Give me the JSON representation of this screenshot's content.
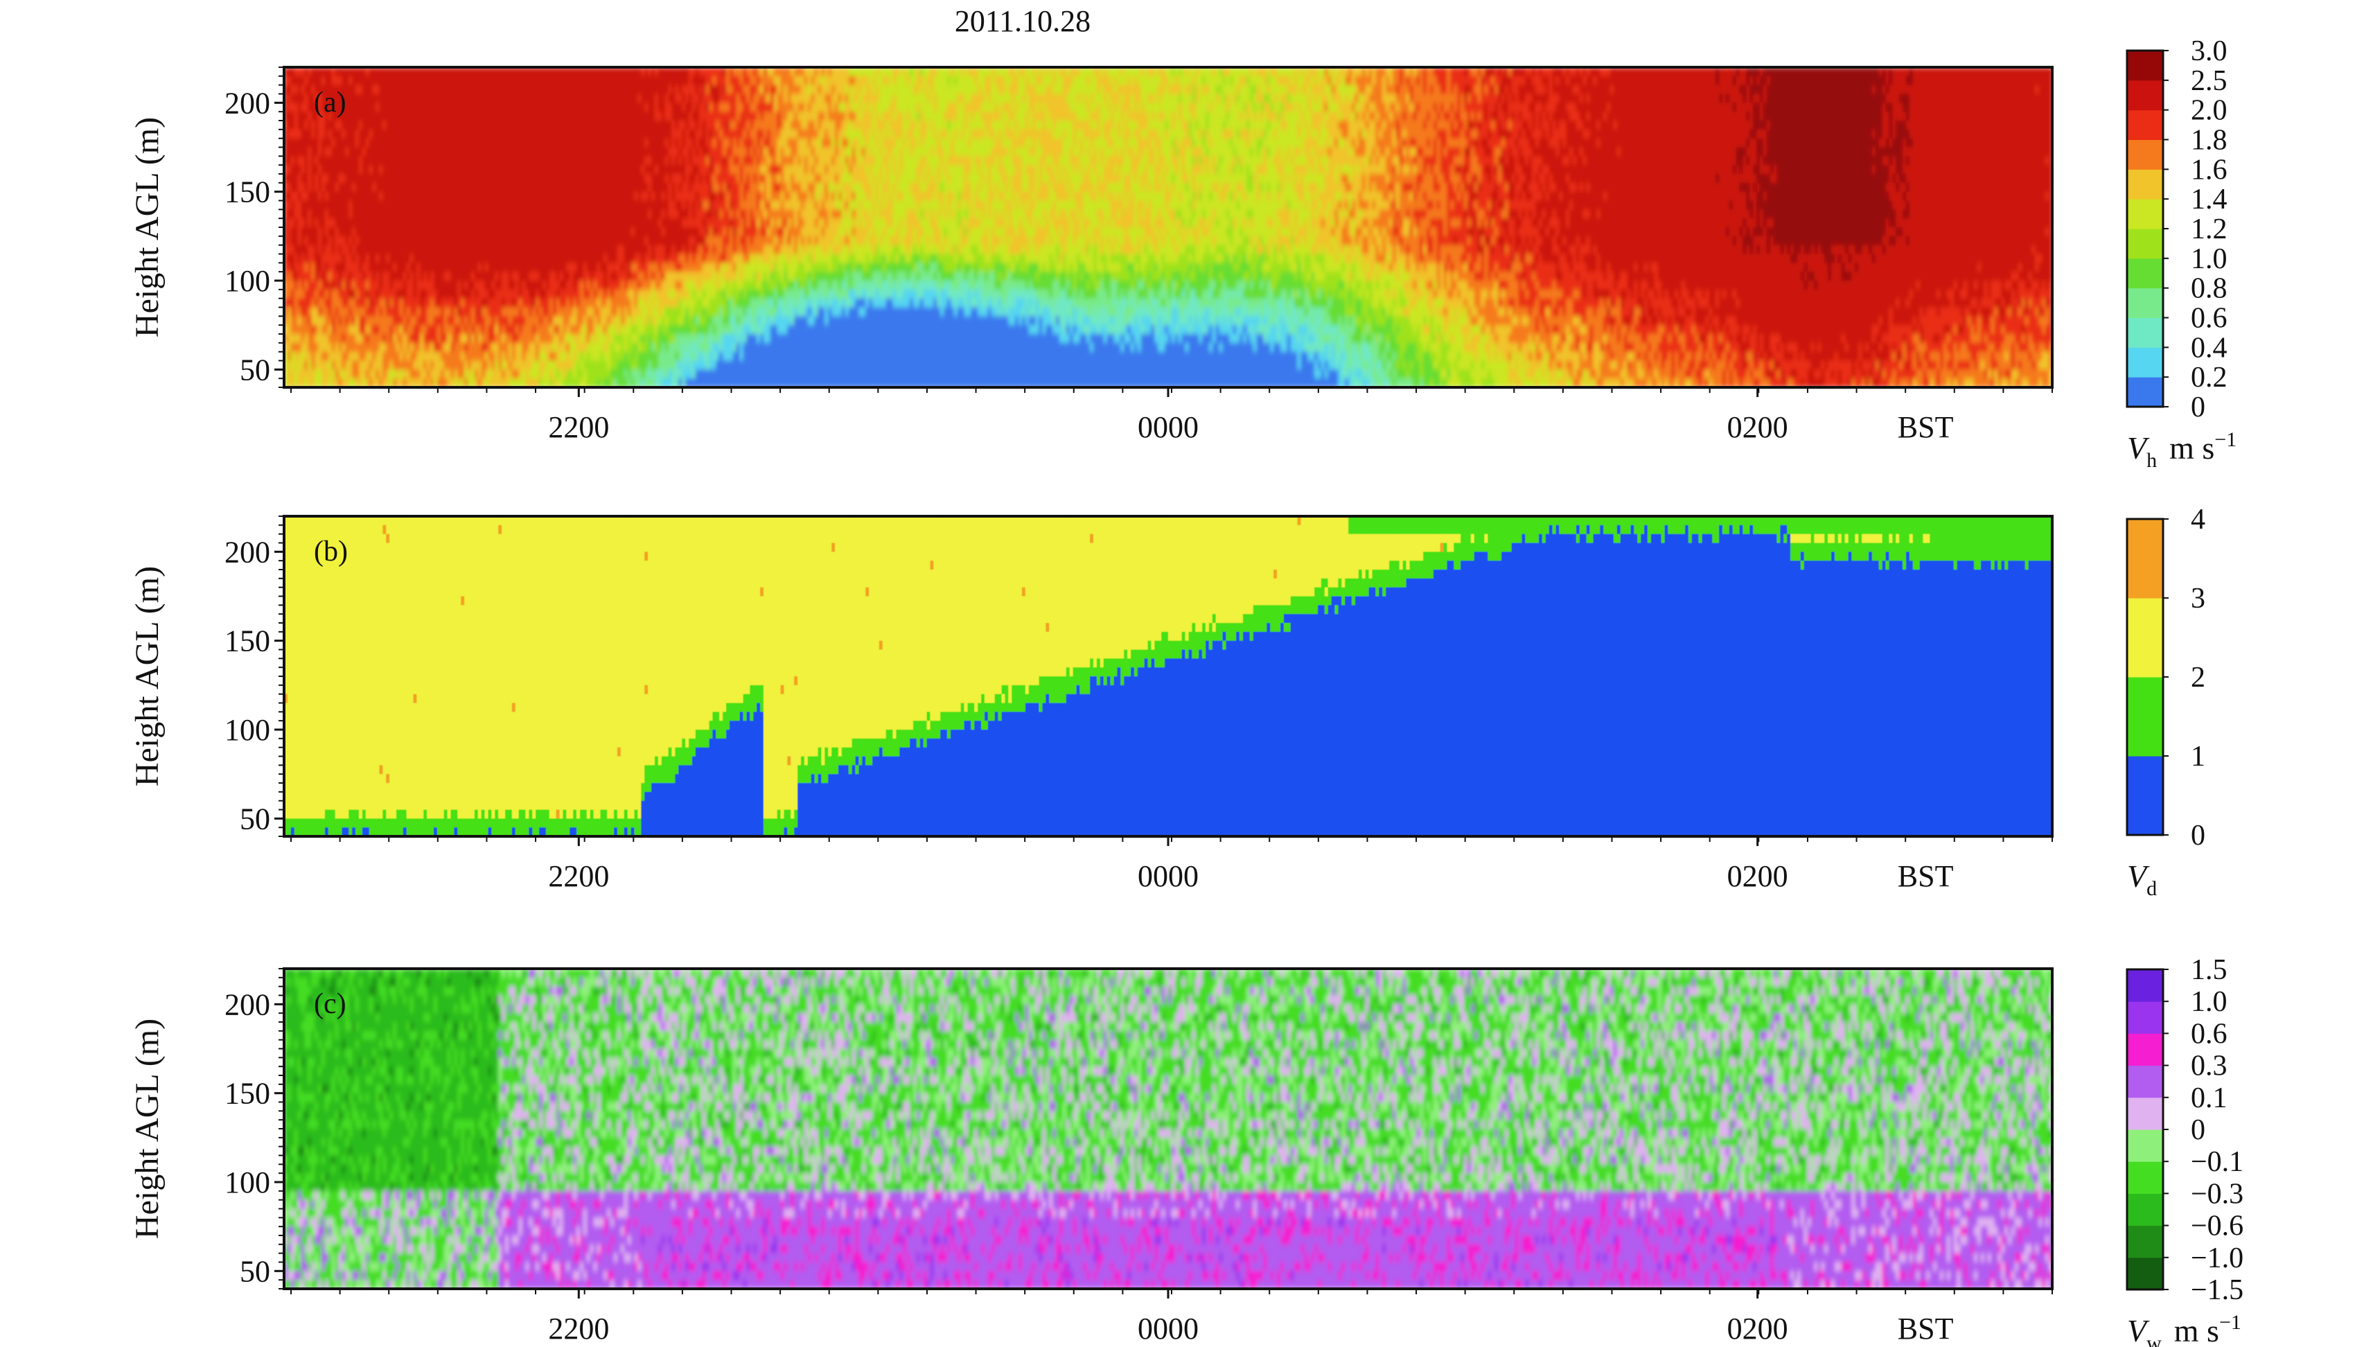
{
  "figure": {
    "title": "2011.10.28"
  },
  "chart_data": [
    {
      "type": "heatmap",
      "panel_label": "(a)",
      "ylabel": "Height AGL (m)",
      "yticks": [
        50,
        100,
        150,
        200
      ],
      "ylim": [
        40,
        220
      ],
      "xticks": [
        "2200",
        "0000",
        "0200"
      ],
      "x_unit_label": "BST",
      "xlim_hours": [
        -3.0,
        3.0
      ],
      "colorbar": {
        "symbol": "V",
        "subscript": "h",
        "unit": "m s",
        "unit_sup": "−1",
        "levels": [
          "0",
          "0.2",
          "0.4",
          "0.6",
          "0.8",
          "1.0",
          "1.2",
          "1.4",
          "1.6",
          "1.8",
          "2.0",
          "2.5",
          "3.0"
        ],
        "colors": [
          "#3a78ee",
          "#56d6f0",
          "#6fe8c4",
          "#79ea8c",
          "#66dd33",
          "#9fe21c",
          "#cbe622",
          "#f0c42a",
          "#f57a1d",
          "#ea2d14",
          "#cc120e",
          "#960808"
        ]
      }
    },
    {
      "type": "heatmap",
      "panel_label": "(b)",
      "ylabel": "Height AGL (m)",
      "yticks": [
        50,
        100,
        150,
        200
      ],
      "ylim": [
        40,
        220
      ],
      "xticks": [
        "2200",
        "0000",
        "0200"
      ],
      "x_unit_label": "BST",
      "xlim_hours": [
        -3.0,
        3.0
      ],
      "colorbar": {
        "symbol": "V",
        "subscript": "d",
        "unit": "",
        "unit_sup": "",
        "levels": [
          "0",
          "1",
          "2",
          "3",
          "4"
        ],
        "colors": [
          "#1f4ff0",
          "#44e014",
          "#f0f23c",
          "#f3a023"
        ]
      }
    },
    {
      "type": "heatmap",
      "panel_label": "(c)",
      "ylabel": "Height AGL (m)",
      "yticks": [
        50,
        100,
        150,
        200
      ],
      "ylim": [
        40,
        220
      ],
      "xticks": [
        "2200",
        "0000",
        "0200"
      ],
      "x_unit_label": "BST",
      "xlim_hours": [
        -3.0,
        3.0
      ],
      "colorbar": {
        "symbol": "V",
        "subscript": "w",
        "unit": "m s",
        "unit_sup": "−1",
        "levels": [
          "−1.5",
          "−1.0",
          "−0.6",
          "−0.3",
          "−0.1",
          "0",
          "0.1",
          "0.3",
          "0.6",
          "1.0",
          "1.5"
        ],
        "colors": [
          "#135e10",
          "#1f8c18",
          "#2cbb1c",
          "#44dd22",
          "#8ef07a",
          "#e0b2f0",
          "#b25cf0",
          "#f51ed0",
          "#9a34ef",
          "#6a22e0"
        ]
      }
    }
  ]
}
